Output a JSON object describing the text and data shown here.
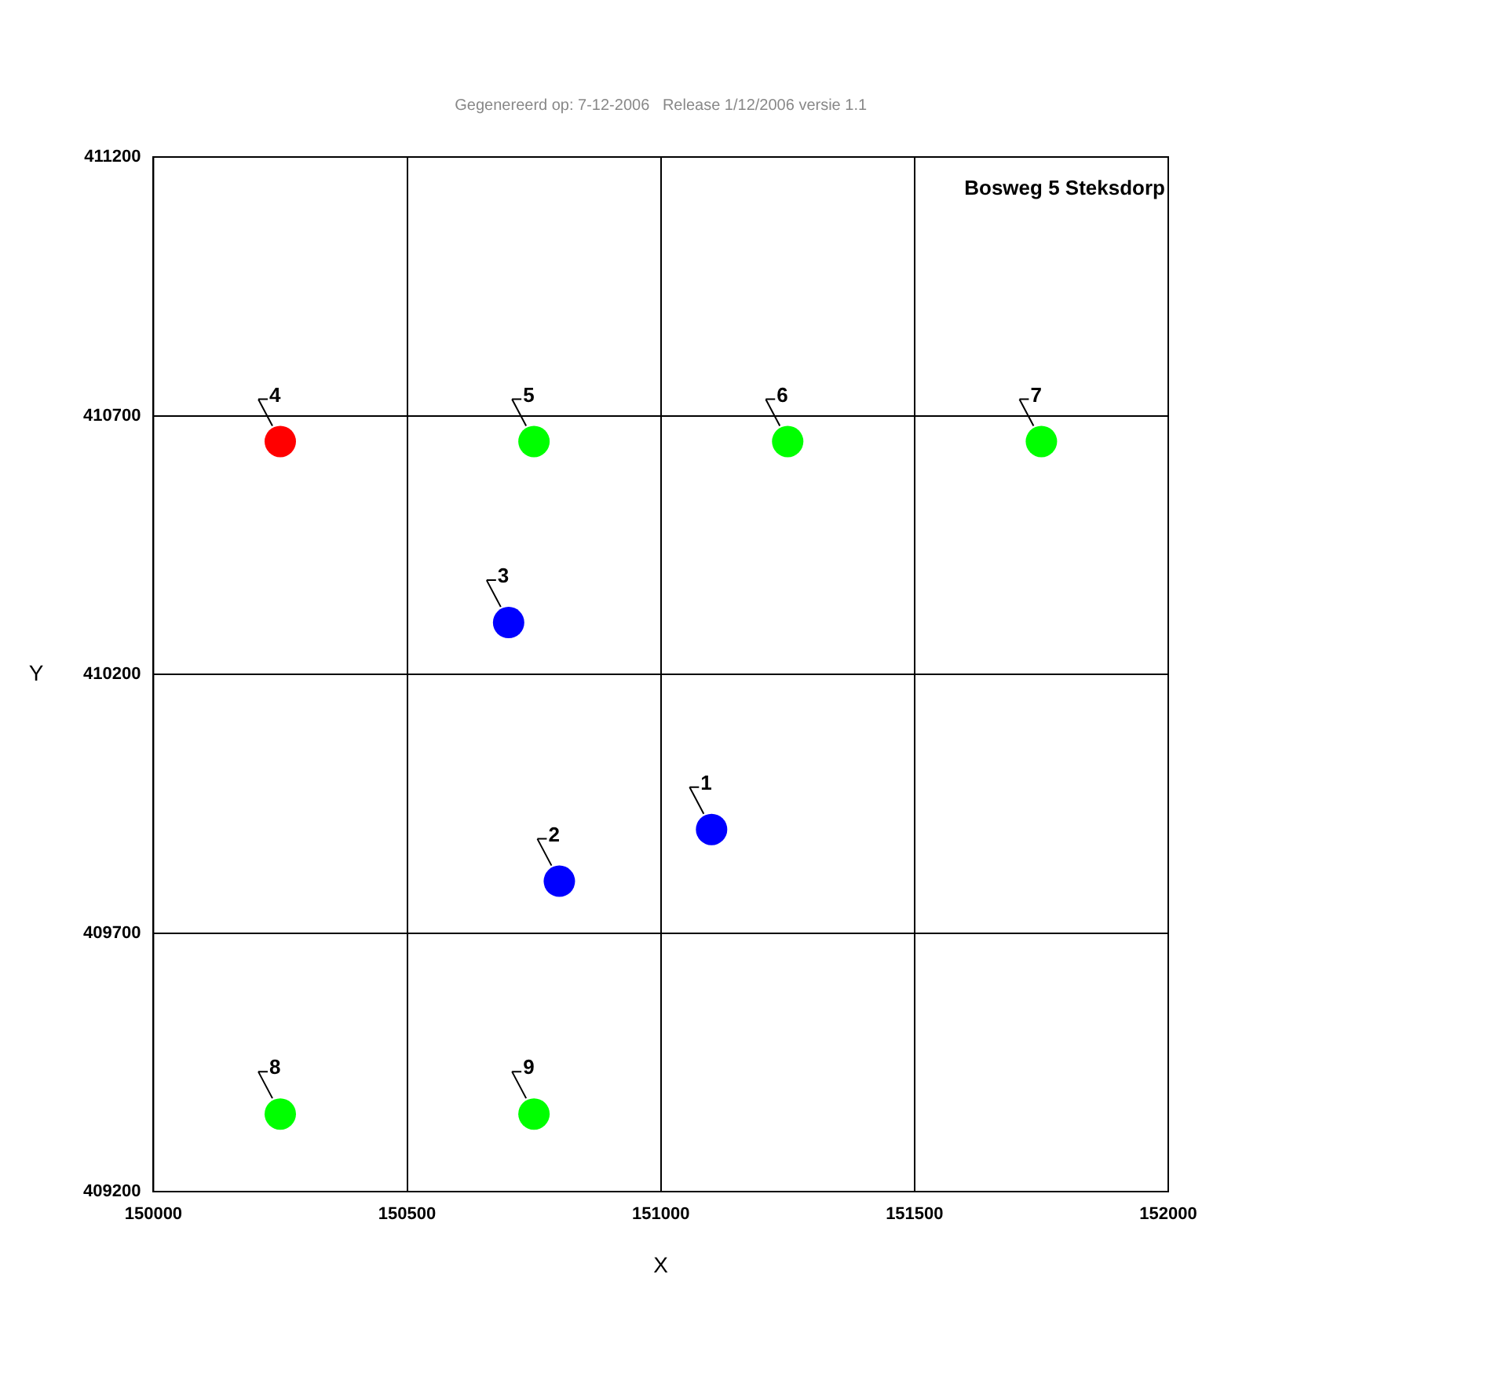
{
  "chart_data": {
    "type": "scatter",
    "title": "Bosweg 5 Steksdorp",
    "xlabel": "X",
    "ylabel": "Y",
    "x": [
      151100,
      150800,
      150700,
      150250,
      150750,
      151250,
      151750,
      150250,
      150750
    ],
    "values": [
      409900,
      409800,
      410300,
      410650,
      410650,
      410650,
      410650,
      409350,
      409350
    ],
    "colors": [
      "#0000ff",
      "#0000ff",
      "#0000ff",
      "#ff0000",
      "#00ff00",
      "#00ff00",
      "#00ff00",
      "#00ff00",
      "#00ff00"
    ],
    "xlim": [
      150000,
      152000
    ],
    "xticks": [
      150000,
      150500,
      151000,
      151500,
      152000
    ],
    "ylim": [
      409200,
      411200
    ],
    "yticks": [
      409200,
      409700,
      410200,
      410700,
      411200
    ],
    "grid": true,
    "legend": false,
    "marker": "circle",
    "annotations": [
      {
        "text": "1",
        "x": 151100,
        "y": 409900
      },
      {
        "text": "2",
        "x": 150800,
        "y": 409800
      },
      {
        "text": "3",
        "x": 150700,
        "y": 410300
      },
      {
        "text": "4",
        "x": 150250,
        "y": 410650
      },
      {
        "text": "5",
        "x": 150750,
        "y": 410650
      },
      {
        "text": "6",
        "x": 151250,
        "y": 410650
      },
      {
        "text": "7",
        "x": 151750,
        "y": 410650
      },
      {
        "text": "8",
        "x": 150250,
        "y": 409350
      },
      {
        "text": "9",
        "x": 150750,
        "y": 409350
      },
      "Gegenereerd op: 7-12-2006   Release 1/12/2006 versie 1.1"
    ]
  }
}
